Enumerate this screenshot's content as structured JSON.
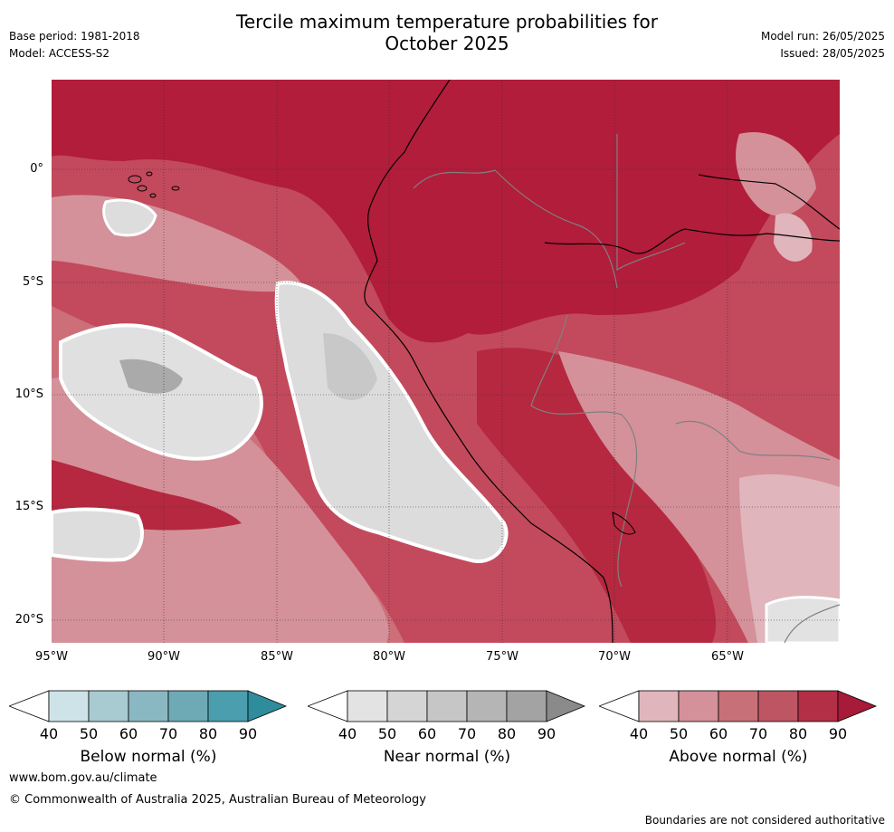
{
  "header": {
    "base_period": "Base period: 1981-2018",
    "model": "Model: ACCESS-S2",
    "title_line1": "Tercile maximum temperature probabilities for",
    "title_line2": "October 2025",
    "model_run": "Model run: 26/05/2025",
    "issued": "Issued: 28/05/2025"
  },
  "map": {
    "lat_labels": [
      "0°",
      "5°S",
      "10°S",
      "15°S",
      "20°S"
    ],
    "lon_labels": [
      "95°W",
      "90°W",
      "85°W",
      "80°W",
      "75°W",
      "70°W",
      "65°W"
    ]
  },
  "colorbars": [
    {
      "label": "Below normal (%)",
      "ticks": [
        "40",
        "50",
        "60",
        "70",
        "80",
        "90"
      ],
      "colors": [
        "#ffffff",
        "#cde3e8",
        "#a8cad1",
        "#8ab8c2",
        "#6eaab5",
        "#4b9eae",
        "#2f8c9c"
      ]
    },
    {
      "label": "Near normal (%)",
      "ticks": [
        "40",
        "50",
        "60",
        "70",
        "80",
        "90"
      ],
      "colors": [
        "#ffffff",
        "#e3e3e3",
        "#d5d5d5",
        "#c6c6c6",
        "#b5b5b5",
        "#a3a3a3",
        "#8a8a8a"
      ]
    },
    {
      "label": "Above normal (%)",
      "ticks": [
        "40",
        "50",
        "60",
        "70",
        "80",
        "90"
      ],
      "colors": [
        "#ffffff",
        "#e0b5bb",
        "#d4919a",
        "#c87078",
        "#bd5563",
        "#b22f46",
        "#a71a38"
      ]
    }
  ],
  "footer": {
    "url": "www.bom.gov.au/climate",
    "copyright": "© Commonwealth of Australia 2025, Australian Bureau of Meteorology",
    "disclaimer": "Boundaries are not considered authoritative"
  }
}
